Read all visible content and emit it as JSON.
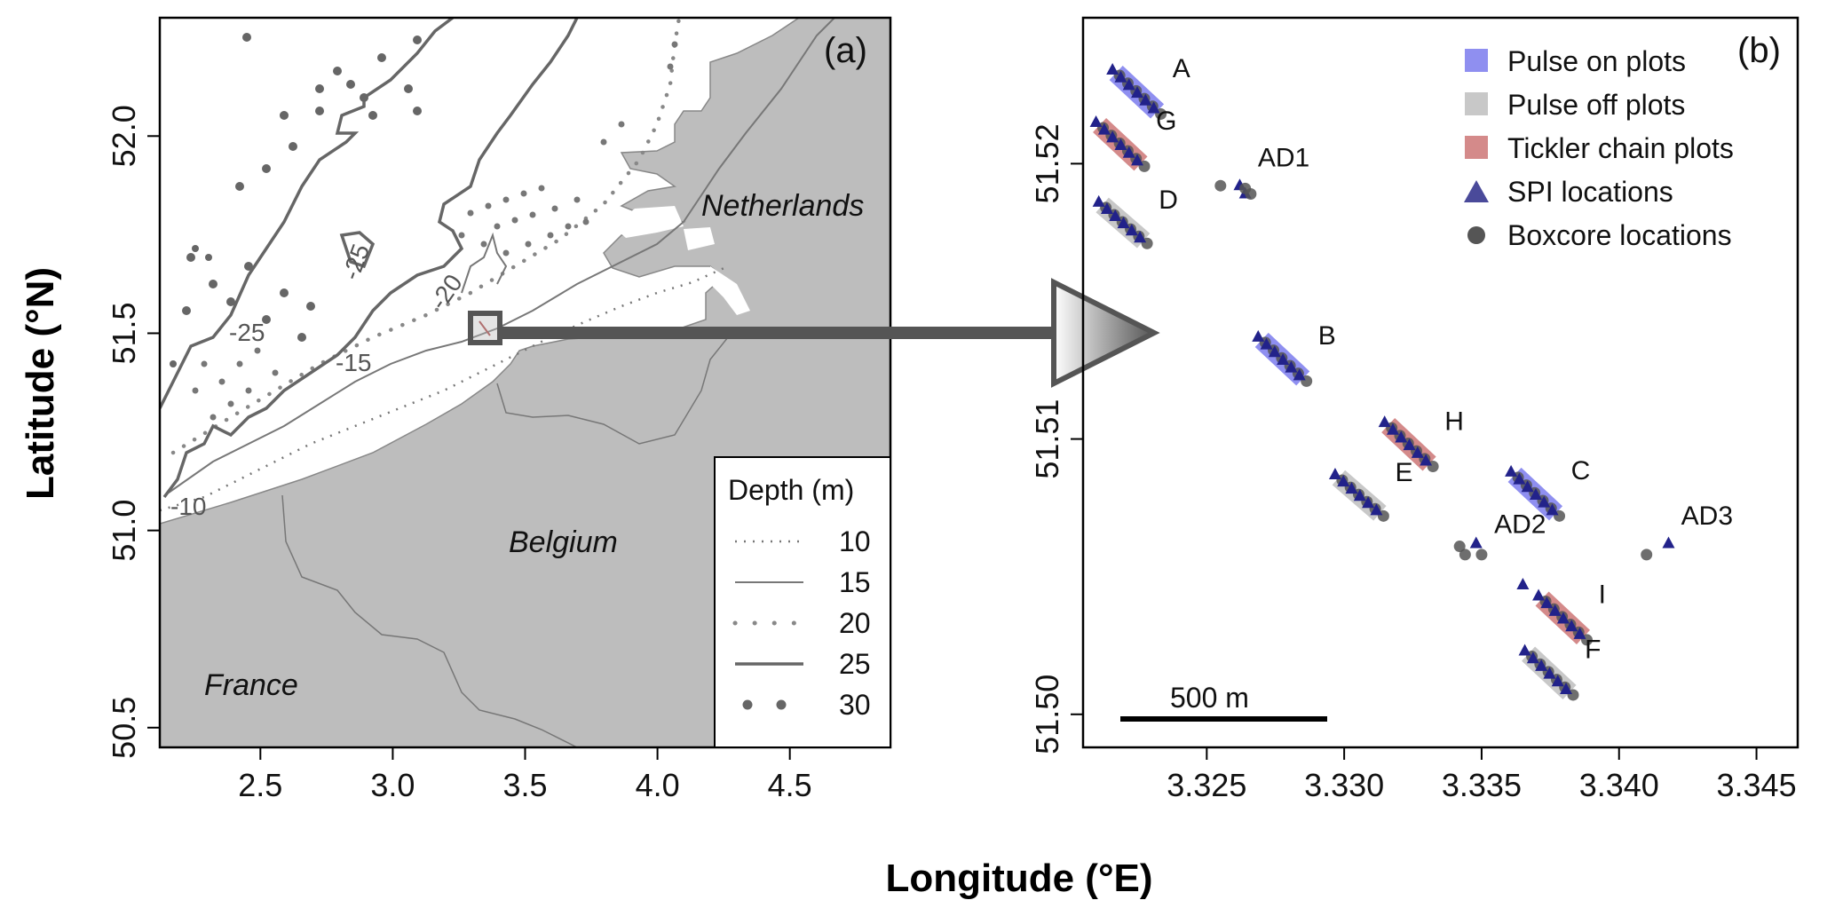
{
  "colors": {
    "land": "#bdbdbd",
    "pulse_on": "#8f8ff0",
    "pulse_off": "#c8c8c8",
    "tickler": "#d48a8a",
    "spi": "#22228a",
    "boxcore": "#555555"
  },
  "axes": {
    "xlabel": "Longitude (°E)",
    "ylabel": "Latitude (°N)"
  },
  "panel_a": {
    "label": "(a)",
    "x_ticks": [
      "2.5",
      "3.0",
      "3.5",
      "4.0",
      "4.5"
    ],
    "y_ticks": [
      "50.5",
      "51.0",
      "51.5",
      "52.0"
    ],
    "countries": [
      "Netherlands",
      "Belgium",
      "France"
    ],
    "contour_labels": [
      "-25",
      "-25",
      "-20",
      "-15",
      "-10"
    ],
    "legend": {
      "title": "Depth (m)",
      "items": [
        "10",
        "15",
        "20",
        "25",
        "30"
      ]
    }
  },
  "panel_b": {
    "label": "(b)",
    "x_ticks": [
      "3.325",
      "3.330",
      "3.335",
      "3.340",
      "3.345"
    ],
    "y_ticks": [
      "51.50",
      "51.51",
      "51.52"
    ],
    "legend": {
      "items": [
        "Pulse on plots",
        "Pulse off plots",
        "Tickler chain plots",
        "SPI locations",
        "Boxcore locations"
      ]
    },
    "scale_bar": "500 m",
    "plot_labels": [
      "A",
      "G",
      "D",
      "AD1",
      "B",
      "H",
      "E",
      "C",
      "AD2",
      "AD3",
      "I",
      "F"
    ]
  },
  "chart_data": {
    "type": "scatter",
    "xlim": [
      3.3205,
      3.3465
    ],
    "ylim": [
      51.4988,
      51.5253
    ],
    "plots": [
      {
        "name": "A",
        "kind": "pulse_on",
        "start": [
          3.3217,
          51.5233
        ],
        "end": [
          3.3232,
          51.5219
        ]
      },
      {
        "name": "G",
        "kind": "tickler",
        "start": [
          3.3211,
          51.5214
        ],
        "end": [
          3.3226,
          51.52
        ]
      },
      {
        "name": "D",
        "kind": "pulse_off",
        "start": [
          3.3212,
          51.5185
        ],
        "end": [
          3.3227,
          51.5172
        ]
      },
      {
        "name": "B",
        "kind": "pulse_on",
        "start": [
          3.327,
          51.5136
        ],
        "end": [
          3.3285,
          51.5122
        ]
      },
      {
        "name": "H",
        "kind": "tickler",
        "start": [
          3.3316,
          51.5105
        ],
        "end": [
          3.3331,
          51.5091
        ]
      },
      {
        "name": "E",
        "kind": "pulse_off",
        "start": [
          3.3298,
          51.5086
        ],
        "end": [
          3.3313,
          51.5073
        ]
      },
      {
        "name": "C",
        "kind": "pulse_on",
        "start": [
          3.3362,
          51.5087
        ],
        "end": [
          3.3377,
          51.5073
        ]
      },
      {
        "name": "I",
        "kind": "tickler",
        "start": [
          3.3372,
          51.5042
        ],
        "end": [
          3.3387,
          51.5028
        ]
      },
      {
        "name": "F",
        "kind": "pulse_off",
        "start": [
          3.3367,
          51.5022
        ],
        "end": [
          3.3382,
          51.5008
        ]
      }
    ],
    "extra_spi": [
      [
        3.3262,
        51.5192
      ],
      [
        3.3264,
        51.5189
      ],
      [
        3.3348,
        51.5062
      ],
      [
        3.3418,
        51.5062
      ],
      [
        3.3365,
        51.5047
      ]
    ],
    "extra_boxcore": [
      [
        3.3255,
        51.5192
      ],
      [
        3.3266,
        51.5189
      ],
      [
        3.3264,
        51.5191
      ],
      [
        3.3342,
        51.5061
      ],
      [
        3.3344,
        51.5058
      ],
      [
        3.335,
        51.5058
      ],
      [
        3.341,
        51.5058
      ]
    ],
    "panel_a_map": {
      "xlim": [
        2.12,
        4.88
      ],
      "ylim": [
        50.45,
        52.3
      ],
      "box_center": [
        3.33,
        51.51
      ]
    }
  }
}
